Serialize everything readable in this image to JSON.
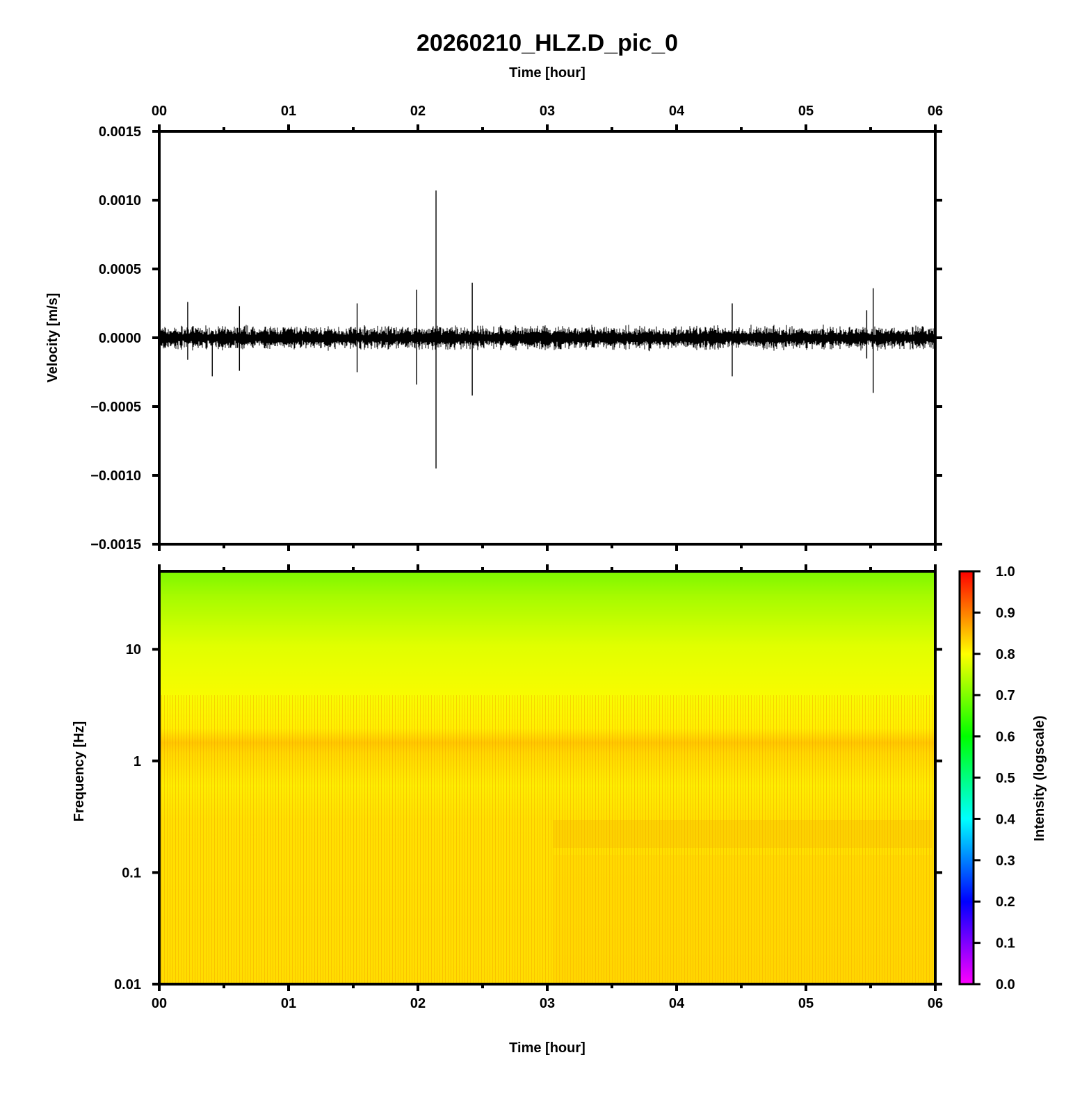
{
  "title": "20260210_HLZ.D_pic_0",
  "top_xlabel": "Time [hour]",
  "bottom_xlabel": "Time [hour]",
  "chart_data": [
    {
      "type": "line",
      "panel": "waveform",
      "ylabel": "Velocity [m/s]",
      "xlabel": "Time [hour]",
      "x_range": [
        0,
        6
      ],
      "x_ticks": [
        "00",
        "01",
        "02",
        "03",
        "04",
        "05",
        "06"
      ],
      "ylim": [
        -0.0015,
        0.0015
      ],
      "y_ticks": [
        "0.0015",
        "0.0010",
        "0.0005",
        "0.0000",
        "−0.0005",
        "−0.0010",
        "−0.0015"
      ],
      "y_tick_values": [
        0.0015,
        0.001,
        0.0005,
        0.0,
        -0.0005,
        -0.001,
        -0.0015
      ],
      "series": [
        {
          "line_color": "#000000",
          "noise_amplitude": 6e-05,
          "spikes": [
            {
              "t": 0.22,
              "max": 0.00026,
              "min": -0.00016
            },
            {
              "t": 0.41,
              "max": 5e-05,
              "min": -0.00028
            },
            {
              "t": 0.62,
              "max": 0.00023,
              "min": -0.00024
            },
            {
              "t": 1.53,
              "max": 0.00025,
              "min": -0.00025
            },
            {
              "t": 1.99,
              "max": 0.00035,
              "min": -0.00034
            },
            {
              "t": 2.14,
              "max": 0.00107,
              "min": -0.00095
            },
            {
              "t": 2.42,
              "max": 0.0004,
              "min": -0.00042
            },
            {
              "t": 4.43,
              "max": 0.00025,
              "min": -0.00028
            },
            {
              "t": 5.47,
              "max": 0.0002,
              "min": -0.00015
            },
            {
              "t": 5.52,
              "max": 0.00036,
              "min": -0.0004
            }
          ]
        }
      ]
    },
    {
      "type": "heatmap",
      "panel": "spectrogram",
      "ylabel": "Frequency [Hz]",
      "xlabel": "Time [hour]",
      "x_range": [
        0,
        6
      ],
      "x_ticks": [
        "00",
        "01",
        "02",
        "03",
        "04",
        "05",
        "06"
      ],
      "y_scale": "log",
      "ylim": [
        0.01,
        50
      ],
      "y_ticks": [
        "10",
        "1",
        "0.1",
        "0.01"
      ],
      "y_tick_values": [
        10,
        1,
        0.1,
        0.01
      ],
      "colorbar": {
        "label": "Intensity (logscale)",
        "range": [
          0.0,
          1.0
        ],
        "ticks": [
          "1.0",
          "0.9",
          "0.8",
          "0.7",
          "0.6",
          "0.5",
          "0.4",
          "0.3",
          "0.2",
          "0.1",
          "0.0"
        ],
        "colors": [
          "#ff00ff",
          "#0000ff",
          "#00ffff",
          "#00ff00",
          "#ffff00",
          "#ff0000"
        ]
      },
      "intensity_profile": [
        {
          "freq": 50,
          "value": 0.66
        },
        {
          "freq": 20,
          "value": 0.72
        },
        {
          "freq": 5,
          "value": 0.78
        },
        {
          "freq": 1.3,
          "value": 0.86
        },
        {
          "freq": 0.5,
          "value": 0.8
        },
        {
          "freq": 0.2,
          "value": 0.81
        },
        {
          "freq": 0.01,
          "value": 0.81
        }
      ]
    }
  ]
}
